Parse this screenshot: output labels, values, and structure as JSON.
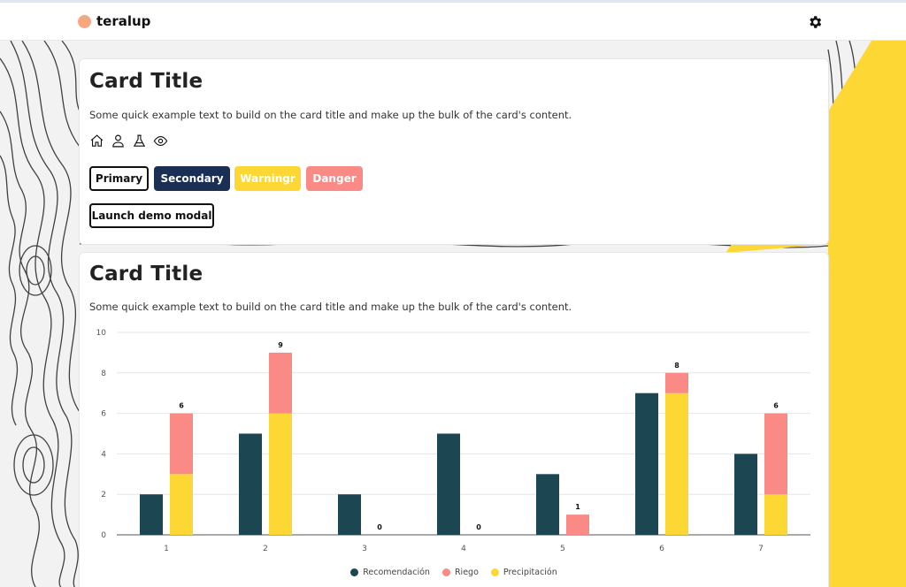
{
  "brand": {
    "name": "teralup",
    "dot_color": "#f7a77f"
  },
  "topbar": {
    "settings_icon": "gear-icon"
  },
  "card1": {
    "title": "Card Title",
    "text": "Some quick example text to build on the card title and make up the bulk of the card's content.",
    "icons": [
      "home-icon",
      "user-icon",
      "flask-icon",
      "eye-icon"
    ],
    "buttons": {
      "primary": "Primary",
      "secondary": "Secondary",
      "warning": "Warningr",
      "danger": "Danger",
      "modal": "Launch demo modal"
    }
  },
  "card2": {
    "title": "Card Title",
    "text": "Some quick example text to build on the card title and make up the bulk of the card's content."
  },
  "colors": {
    "dark": "#1b4652",
    "pink": "#f98a85",
    "yellow": "#fdd835",
    "navy": "#1b2f55",
    "accent_yellow": "#fdd835"
  },
  "chart_data": {
    "type": "bar",
    "categories": [
      "1",
      "2",
      "3",
      "4",
      "5",
      "6",
      "7"
    ],
    "ylim": [
      0,
      10
    ],
    "yticks": [
      "0",
      "2",
      "4",
      "6",
      "8",
      "10"
    ],
    "series": [
      {
        "name": "Recomendación",
        "values": [
          2,
          5,
          2,
          5,
          3,
          7,
          4
        ],
        "color": "#1b4652",
        "stack": "a"
      },
      {
        "name": "Precipitación",
        "values": [
          3,
          6,
          0,
          0,
          0,
          7,
          2
        ],
        "color": "#fdd835",
        "stack": "b"
      },
      {
        "name": "Riego",
        "values": [
          3,
          3,
          0,
          0,
          1,
          1,
          4
        ],
        "color": "#f98a85",
        "stack": "b"
      }
    ],
    "stack_totals": [
      "6",
      "9",
      "0",
      "0",
      "1",
      "8",
      "6"
    ],
    "legend": [
      "Recomendación",
      "Riego",
      "Precipitación"
    ],
    "legend_colors": [
      "#1b4652",
      "#f98a85",
      "#fdd835"
    ],
    "legend_position": "bottom",
    "grid": true
  }
}
